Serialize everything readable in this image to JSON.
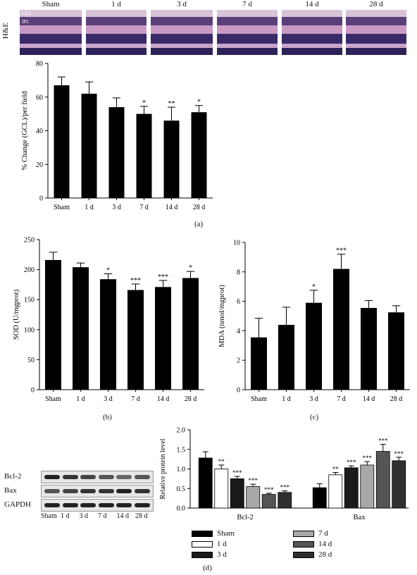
{
  "he": {
    "row_label": "H&E",
    "columns": [
      "Sham",
      "1 d",
      "3 d",
      "7 d",
      "14 d",
      "28 d"
    ],
    "layer_labels": [
      "GCL",
      "IPL"
    ]
  },
  "captions": {
    "a": "(a)",
    "b": "(b)",
    "c": "(c)",
    "d": "(d)"
  },
  "western": {
    "bands": [
      "Bcl-2",
      "Bax",
      "GAPDH"
    ],
    "lanes": [
      "Sham",
      "1 d",
      "3 d",
      "7 d",
      "14 d",
      "28 d"
    ]
  },
  "colors": {
    "black": "#000000",
    "white": "#ffffff",
    "grey_light": "#a8a8a8",
    "grey_dark": "#555555",
    "grey_darker": "#2f2f2f",
    "grey_black": "#1a1a1a"
  },
  "chart_data": [
    {
      "id": "gcl",
      "type": "bar",
      "ylabel": "% Change (GCL)/per field",
      "categories": [
        "Sham",
        "1 d",
        "3 d",
        "7 d",
        "14 d",
        "28 d"
      ],
      "values": [
        67,
        62,
        54,
        50,
        46,
        51
      ],
      "errors": [
        5,
        7,
        5.5,
        4.5,
        8,
        4
      ],
      "significance": [
        "",
        "",
        "",
        "*",
        "**",
        "*"
      ],
      "ylim": [
        0,
        80
      ],
      "yticks": [
        0,
        20,
        40,
        60,
        80
      ]
    },
    {
      "id": "sod",
      "type": "bar",
      "ylabel": "SOD (U/mgprot)",
      "categories": [
        "Sham",
        "1 d",
        "3 d",
        "7 d",
        "14 d",
        "28 d"
      ],
      "values": [
        216,
        204,
        184,
        166,
        171,
        186
      ],
      "errors": [
        13,
        7,
        9,
        10,
        11,
        11
      ],
      "significance": [
        "",
        "",
        "*",
        "***",
        "***",
        "*"
      ],
      "ylim": [
        0,
        250
      ],
      "yticks": [
        0,
        50,
        100,
        150,
        200,
        250
      ]
    },
    {
      "id": "mda",
      "type": "bar",
      "ylabel": "MDA (nmol/mgprot)",
      "categories": [
        "Sham",
        "1 d",
        "3 d",
        "7 d",
        "14 d",
        "28 d"
      ],
      "values": [
        3.55,
        4.4,
        5.9,
        8.2,
        5.55,
        5.25
      ],
      "errors": [
        1.3,
        1.2,
        0.85,
        1.0,
        0.5,
        0.45
      ],
      "significance": [
        "",
        "",
        "*",
        "***",
        "",
        ""
      ],
      "ylim": [
        0,
        10
      ],
      "yticks": [
        0,
        2,
        4,
        6,
        8,
        10
      ]
    },
    {
      "id": "protein",
      "type": "bar",
      "ylabel": "Relative protein level",
      "categories": [
        "Bcl-2",
        "Bax"
      ],
      "series": [
        {
          "name": "Sham",
          "values": [
            1.28,
            0.52
          ],
          "errors": [
            0.16,
            0.1
          ],
          "significance": [
            "",
            ""
          ]
        },
        {
          "name": "1 d",
          "values": [
            1.0,
            0.85
          ],
          "errors": [
            0.1,
            0.06
          ],
          "significance": [
            "**",
            "**"
          ]
        },
        {
          "name": "3 d",
          "values": [
            0.75,
            1.03
          ],
          "errors": [
            0.06,
            0.05
          ],
          "significance": [
            "***",
            "***"
          ]
        },
        {
          "name": "7 d",
          "values": [
            0.55,
            1.1
          ],
          "errors": [
            0.06,
            0.09
          ],
          "significance": [
            "***",
            "***"
          ]
        },
        {
          "name": "14 d",
          "values": [
            0.35,
            1.45
          ],
          "errors": [
            0.03,
            0.18
          ],
          "significance": [
            "***",
            "***"
          ]
        },
        {
          "name": "28 d",
          "values": [
            0.4,
            1.21
          ],
          "errors": [
            0.04,
            0.09
          ],
          "significance": [
            "***",
            "***"
          ]
        }
      ],
      "ylim": [
        0,
        2.0
      ],
      "yticks": [
        0.0,
        0.5,
        1.0,
        1.5,
        2.0
      ],
      "ytick_labels": [
        "0.0",
        "0.5",
        "1.0",
        "1.5",
        "2.0"
      ]
    }
  ]
}
